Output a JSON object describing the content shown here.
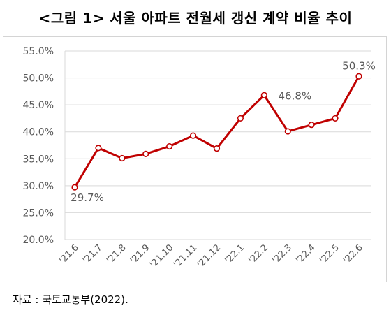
{
  "title": "<그림 1> 서울 아파트 전월세 갱신 계약 비율 추이",
  "source": "자료 : 국토교통부(2022).",
  "chart_data": {
    "type": "line",
    "categories": [
      "'21.6",
      "'21.7",
      "'21.8",
      "'21.9",
      "'21.10",
      "'21.11",
      "'21.12",
      "'22.1",
      "'22.2",
      "'22.3",
      "'22.4",
      "'22.5",
      "'22.6"
    ],
    "series": [
      {
        "values": [
          29.7,
          37.0,
          35.1,
          35.9,
          37.3,
          39.3,
          36.9,
          42.5,
          46.8,
          40.1,
          41.3,
          42.5,
          50.3
        ]
      }
    ],
    "ylim": [
      20,
      55
    ],
    "yticks": [
      20,
      25,
      30,
      35,
      40,
      45,
      50,
      55
    ],
    "ytick_labels": [
      "20.0%",
      "25.0%",
      "30.0%",
      "35.0%",
      "40.0%",
      "45.0%",
      "50.0%",
      "55.0%"
    ],
    "data_labels": [
      {
        "index": 0,
        "text": "29.7%"
      },
      {
        "index": 8,
        "text": "46.8%"
      },
      {
        "index": 12,
        "text": "50.3%"
      }
    ],
    "grid": true,
    "line_color": "#c00000"
  }
}
